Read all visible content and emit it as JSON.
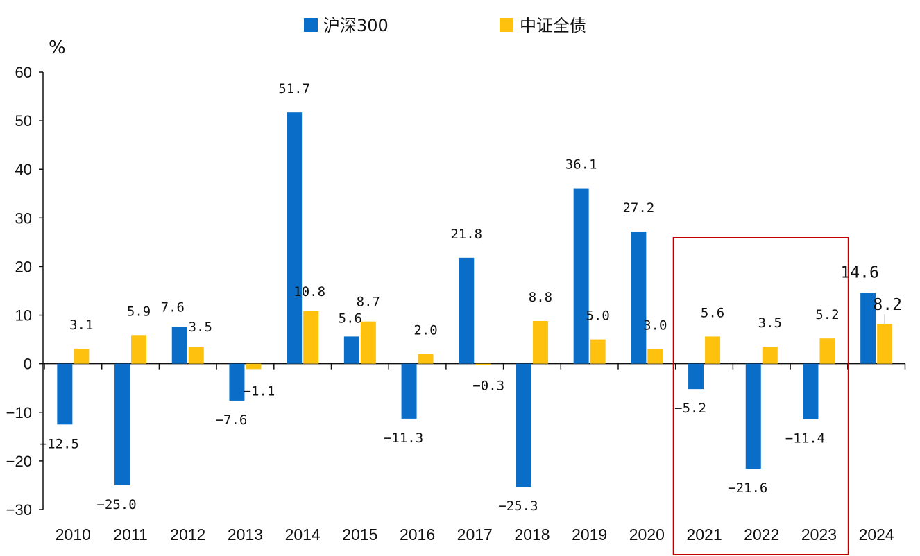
{
  "chart_data": {
    "type": "bar",
    "title": "",
    "unit": "%",
    "xlabel": "",
    "ylabel": "",
    "ylim": [
      -30,
      60
    ],
    "yticks": [
      60,
      50,
      40,
      30,
      20,
      10,
      0,
      -10,
      -20,
      -30
    ],
    "categories": [
      "2010",
      "2011",
      "2012",
      "2013",
      "2014",
      "2015",
      "2016",
      "2017",
      "2018",
      "2019",
      "2020",
      "2021",
      "2022",
      "2023",
      "2024"
    ],
    "series": [
      {
        "name": "沪深300",
        "color": "#0A6EC8",
        "values": [
          -12.5,
          -25.0,
          7.6,
          -7.6,
          51.7,
          5.6,
          -11.3,
          21.8,
          -25.3,
          36.1,
          27.2,
          -5.2,
          -21.6,
          -11.4,
          14.6
        ],
        "labels": [
          "-12.5",
          "-25.0",
          "7.6",
          "-7.6",
          "51.7",
          "5.6",
          "-11.3",
          "21.8",
          "-25.3",
          "36.1",
          "27.2",
          "-5.2",
          "-21.6",
          "-11.4",
          "14.6"
        ]
      },
      {
        "name": "中证全债",
        "color": "#FDC10E",
        "values": [
          3.1,
          5.9,
          3.5,
          -1.1,
          10.8,
          8.7,
          2.0,
          -0.3,
          8.8,
          5.0,
          3.0,
          5.6,
          3.5,
          5.2,
          8.2
        ],
        "labels": [
          "3.1",
          "5.9",
          "3.5",
          "-1.1",
          "10.8",
          "8.7",
          "2.0",
          "-0.3",
          "8.8",
          "5.0",
          "3.0",
          "5.6",
          "3.5",
          "5.2",
          "8.2"
        ]
      }
    ],
    "legend_position": "top",
    "highlight": {
      "categories": [
        "2021",
        "2022",
        "2023"
      ],
      "color": "#C00000"
    },
    "grid": false
  }
}
